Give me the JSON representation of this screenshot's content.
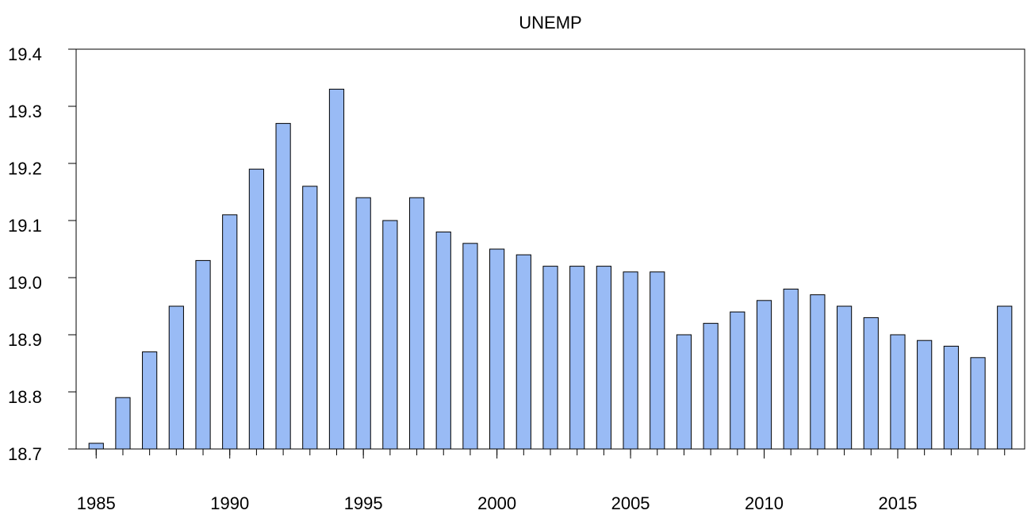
{
  "chart_data": {
    "type": "bar",
    "title": "UNEMP",
    "x": [
      1985,
      1986,
      1987,
      1988,
      1989,
      1990,
      1991,
      1992,
      1993,
      1994,
      1995,
      1996,
      1997,
      1998,
      1999,
      2000,
      2001,
      2002,
      2003,
      2004,
      2005,
      2006,
      2007,
      2008,
      2009,
      2010,
      2011,
      2012,
      2013,
      2014,
      2015,
      2016,
      2017,
      2018,
      2019
    ],
    "values": [
      18.71,
      18.79,
      18.87,
      18.95,
      19.03,
      19.11,
      19.19,
      19.27,
      19.16,
      19.33,
      19.14,
      19.1,
      19.14,
      19.08,
      19.06,
      19.05,
      19.04,
      19.02,
      19.02,
      19.02,
      19.01,
      19.01,
      18.9,
      18.92,
      18.94,
      18.96,
      18.98,
      18.97,
      18.95,
      18.93,
      18.9,
      18.89,
      18.88,
      18.86,
      18.95
    ],
    "color": "#99bbf5",
    "xlim": [
      1984.25,
      2019.75
    ],
    "xticks": [
      1985,
      1990,
      1995,
      2000,
      2005,
      2010,
      2015
    ],
    "ylim": [
      18.7,
      19.4
    ],
    "yticks": [
      {
        "value": 18.7,
        "label": "18.7"
      },
      {
        "value": 18.8,
        "label": "18.8"
      },
      {
        "value": 18.9,
        "label": "18.9"
      },
      {
        "value": 19.0,
        "label": "19.0"
      },
      {
        "value": 19.1,
        "label": "19.1"
      },
      {
        "value": 19.2,
        "label": "19.2"
      },
      {
        "value": 19.3,
        "label": "19.3"
      },
      {
        "value": 19.4,
        "label": "19.4"
      }
    ]
  }
}
